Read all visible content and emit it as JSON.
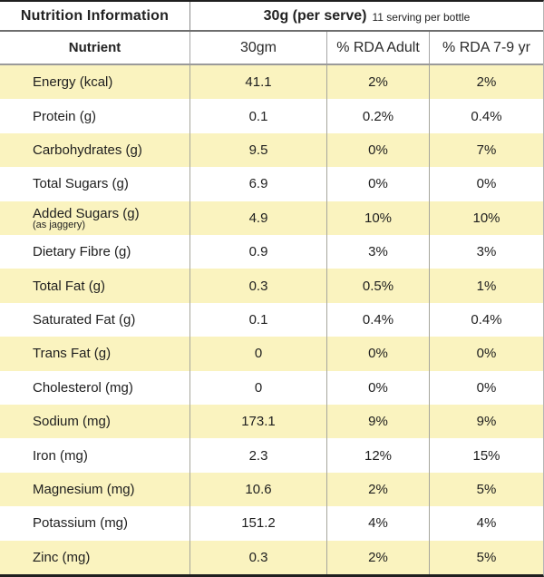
{
  "header": {
    "title": "Nutrition Information",
    "serve_size": "30g (per serve)",
    "serve_note": "11 serving per bottle"
  },
  "columns": {
    "nutrient": "Nutrient",
    "amount": "30gm",
    "rda_adult": "% RDA Adult",
    "rda_child": "% RDA 7-9 yr"
  },
  "rows": [
    {
      "name": "Energy (kcal)",
      "amount": "41.1",
      "rda_adult": "2%",
      "rda_child": "2%"
    },
    {
      "name": "Protein (g)",
      "amount": "0.1",
      "rda_adult": "0.2%",
      "rda_child": "0.4%"
    },
    {
      "name": "Carbohydrates (g)",
      "amount": "9.5",
      "rda_adult": "0%",
      "rda_child": "7%"
    },
    {
      "name": "Total Sugars (g)",
      "amount": "6.9",
      "rda_adult": "0%",
      "rda_child": "0%"
    },
    {
      "name": "Added Sugars (g)",
      "sub": "(as jaggery)",
      "amount": "4.9",
      "rda_adult": "10%",
      "rda_child": "10%"
    },
    {
      "name": "Dietary Fibre (g)",
      "amount": "0.9",
      "rda_adult": "3%",
      "rda_child": "3%"
    },
    {
      "name": "Total Fat (g)",
      "amount": "0.3",
      "rda_adult": "0.5%",
      "rda_child": "1%"
    },
    {
      "name": "Saturated Fat (g)",
      "amount": "0.1",
      "rda_adult": "0.4%",
      "rda_child": "0.4%"
    },
    {
      "name": "Trans Fat (g)",
      "amount": "0",
      "rda_adult": "0%",
      "rda_child": "0%"
    },
    {
      "name": "Cholesterol (mg)",
      "amount": "0",
      "rda_adult": "0%",
      "rda_child": "0%"
    },
    {
      "name": "Sodium (mg)",
      "amount": "173.1",
      "rda_adult": "9%",
      "rda_child": "9%"
    },
    {
      "name": "Iron (mg)",
      "amount": "2.3",
      "rda_adult": "12%",
      "rda_child": "15%"
    },
    {
      "name": "Magnesium (mg)",
      "amount": "10.6",
      "rda_adult": "2%",
      "rda_child": "5%"
    },
    {
      "name": "Potassium (mg)",
      "amount": "151.2",
      "rda_adult": "4%",
      "rda_child": "4%"
    },
    {
      "name": "Zinc (mg)",
      "amount": "0.3",
      "rda_adult": "2%",
      "rda_child": "5%"
    }
  ],
  "colors": {
    "stripe_yellow": "#faf3bf",
    "border_dark": "#1f1f1f",
    "divider_gray": "#a6a6a6"
  }
}
